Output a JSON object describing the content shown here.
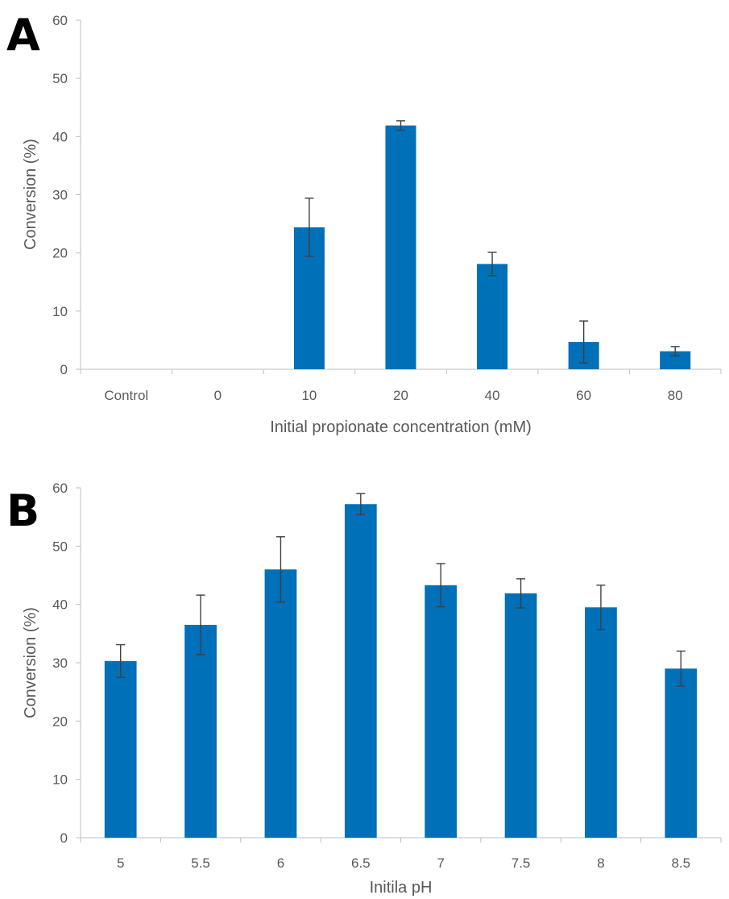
{
  "chart_data": [
    {
      "panel_label": "A",
      "type": "bar",
      "categories": [
        "Control",
        "0",
        "10",
        "20",
        "40",
        "60",
        "80"
      ],
      "values": [
        0,
        0,
        24.4,
        41.9,
        18.1,
        4.7,
        3.1
      ],
      "error": [
        0,
        0,
        5.0,
        0.8,
        2.0,
        3.6,
        0.8
      ],
      "xlabel": "Initial propionate concentration (mM)",
      "ylabel": "Conversion (%)",
      "ylim": [
        0,
        60
      ],
      "yticks": [
        0,
        10,
        20,
        30,
        40,
        50,
        60
      ],
      "grid": false,
      "bar_color": "#0070B8",
      "errorbar_color": "#404040"
    },
    {
      "panel_label": "B",
      "type": "bar",
      "categories": [
        "5",
        "5.5",
        "6",
        "6.5",
        "7",
        "7.5",
        "8",
        "8.5"
      ],
      "values": [
        30.3,
        36.5,
        46.0,
        57.2,
        43.3,
        41.9,
        39.5,
        29.0
      ],
      "error": [
        2.8,
        5.1,
        5.6,
        1.8,
        3.7,
        2.5,
        3.8,
        3.0
      ],
      "xlabel": "Initila pH",
      "ylabel": "Conversion (%)",
      "ylim": [
        0,
        60
      ],
      "yticks": [
        0,
        10,
        20,
        30,
        40,
        50,
        60
      ],
      "grid": false,
      "bar_color": "#0070B8",
      "errorbar_color": "#404040"
    }
  ]
}
